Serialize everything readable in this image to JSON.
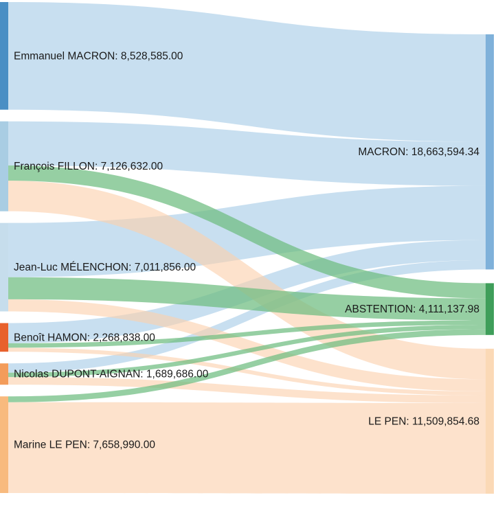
{
  "chart_data": {
    "type": "sankey",
    "title": "",
    "sources": [
      {
        "id": "macron",
        "name": "Emmanuel MACRON",
        "value_text": "8,528,585.00",
        "value": 8528585.0,
        "color": "#4a8fc4"
      },
      {
        "id": "fillon",
        "name": "François FILLON",
        "value_text": "7,126,632.00",
        "value": 7126632.0,
        "color": "#a9cde3"
      },
      {
        "id": "melenchon",
        "name": "Jean-Luc MÉLENCHON",
        "value_text": "7,011,856.00",
        "value": 7011856.0,
        "color": "#c6ddec"
      },
      {
        "id": "hamon",
        "name": "Benoît HAMON",
        "value_text": "2,268,838.00",
        "value": 2268838.0,
        "color": "#e8612c"
      },
      {
        "id": "dupont",
        "name": "Nicolas DUPONT-AIGNAN",
        "value_text": "1,689,686.00",
        "value": 1689686.0,
        "color": "#f39c5a"
      },
      {
        "id": "lepen",
        "name": "Marine LE PEN",
        "value_text": "7,658,990.00",
        "value": 7658990.0,
        "color": "#f8ba7e"
      }
    ],
    "targets": [
      {
        "id": "t_macron",
        "name": "MACRON",
        "value_text": "18,663,594.34",
        "value": 18663594.34,
        "color": "#7fb1da"
      },
      {
        "id": "t_abstention",
        "name": "ABSTENTION",
        "value_text": "4,111,137.98",
        "value": 4111137.98,
        "color": "#3f9e5a"
      },
      {
        "id": "t_lepen",
        "name": "LE PEN",
        "value_text": "11,509,854.68",
        "value": 11509854.68,
        "color": "#fbd9b6"
      }
    ],
    "links": [
      {
        "source": "macron",
        "target": "t_macron",
        "value": 8528585.0
      },
      {
        "source": "fillon",
        "target": "t_macron",
        "value": 3500000.0
      },
      {
        "source": "fillon",
        "target": "t_abstention",
        "value": 1200000.0
      },
      {
        "source": "fillon",
        "target": "t_lepen",
        "value": 2426632.0
      },
      {
        "source": "melenchon",
        "target": "t_macron",
        "value": 4300000.0
      },
      {
        "source": "melenchon",
        "target": "t_abstention",
        "value": 1750000.0
      },
      {
        "source": "melenchon",
        "target": "t_lepen",
        "value": 961856.0
      },
      {
        "source": "hamon",
        "target": "t_macron",
        "value": 1600000.0
      },
      {
        "source": "hamon",
        "target": "t_abstention",
        "value": 350000.0
      },
      {
        "source": "hamon",
        "target": "t_lepen",
        "value": 318838.0
      },
      {
        "source": "dupont",
        "target": "t_macron",
        "value": 735009.34
      },
      {
        "source": "dupont",
        "target": "t_abstention",
        "value": 350000.0
      },
      {
        "source": "dupont",
        "target": "t_lepen",
        "value": 604676.66
      },
      {
        "source": "lepen",
        "target": "t_abstention",
        "value": 461137.98
      },
      {
        "source": "lepen",
        "target": "t_lepen",
        "value": 7197852.02
      }
    ],
    "link_colors": {
      "t_macron": "#a6cbe6",
      "t_abstention": "#6ebd80",
      "t_lepen": "#fbd0ad"
    }
  }
}
